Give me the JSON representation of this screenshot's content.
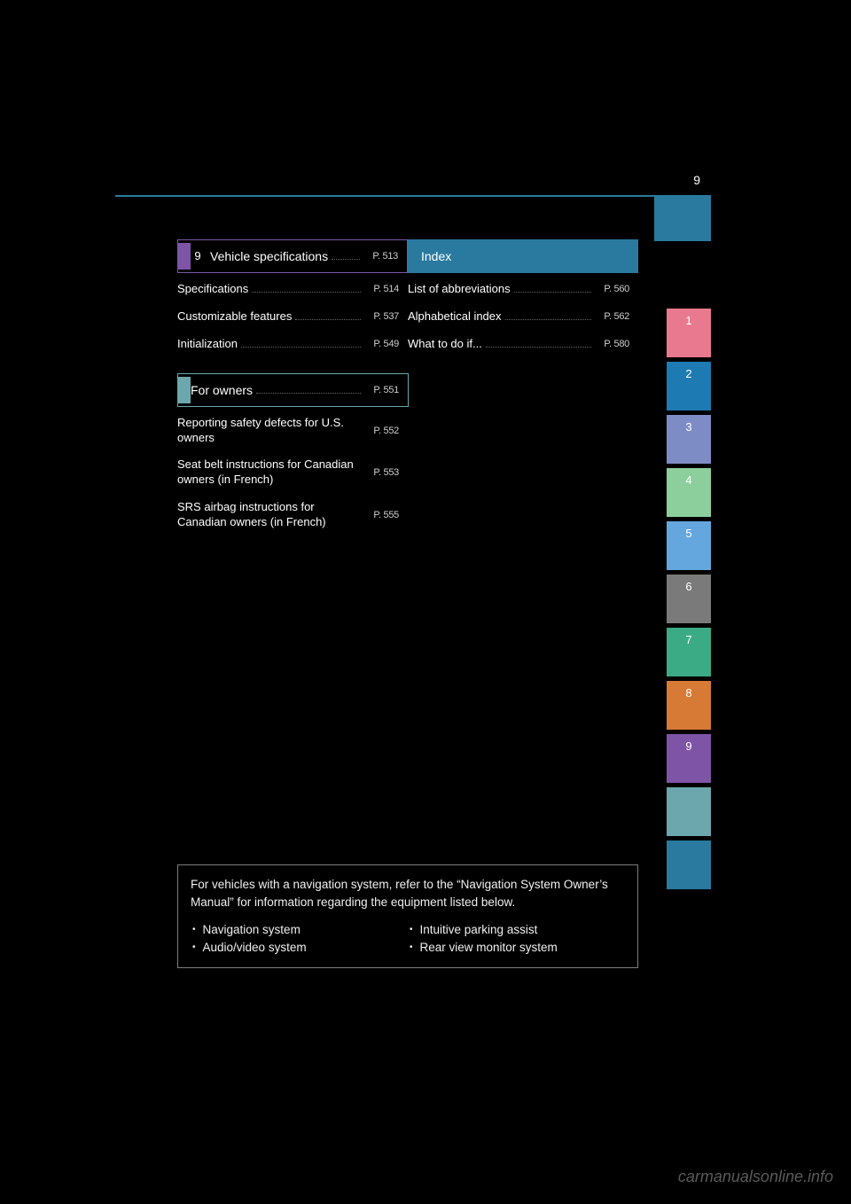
{
  "page_number": "9",
  "tabs": [
    {
      "n": "1",
      "color": "#e8798e"
    },
    {
      "n": "2",
      "color": "#1d7ab2"
    },
    {
      "n": "3",
      "color": "#7e8cc6"
    },
    {
      "n": "4",
      "color": "#8ccf9c"
    },
    {
      "n": "5",
      "color": "#64a7de"
    },
    {
      "n": "6",
      "color": "#7a7a7a"
    },
    {
      "n": "7",
      "color": "#3aab85"
    },
    {
      "n": "8",
      "color": "#d67a35"
    },
    {
      "n": "9",
      "color": "#7e55a6"
    },
    {
      "n": "",
      "color": "#6ba7ac"
    },
    {
      "n": "",
      "color": "#297a9e"
    }
  ],
  "toc": {
    "rows": [
      {
        "left": {
          "num": "9",
          "label": "Vehicle specifications",
          "page": "P. 513",
          "chip": "#7e55a6",
          "border": "#7e55a6"
        },
        "right": {
          "label": "Index",
          "page": "",
          "chip": "#297a9e",
          "fill": "#297a9e"
        }
      },
      {
        "left": {
          "label": "Specifications",
          "page": "P. 514"
        },
        "right": {
          "label": "List of abbreviations",
          "page": "P. 560"
        }
      },
      {
        "left": {
          "label": "Customizable features",
          "page": "P. 537"
        },
        "right": {
          "label": "Alphabetical index",
          "page": "P. 562"
        }
      },
      {
        "left": {
          "label": "Initialization",
          "page": "P. 549"
        },
        "right": {
          "label": "What to do if...",
          "page": "P. 580"
        }
      },
      {
        "left": {
          "label": "",
          "page": ""
        },
        "right": {
          "label": "",
          "page": ""
        }
      },
      {
        "left": {
          "label": "For owners",
          "page": "P. 551",
          "chip": "#6ba7ac",
          "border": "#6ba7ac"
        },
        "right": {
          "label": "",
          "page": ""
        }
      },
      {
        "left": {
          "label": "Reporting safety defects for U.S. owners",
          "page": "P. 552"
        },
        "right": {
          "label": "",
          "page": ""
        }
      },
      {
        "left": {
          "label": "Seat belt instructions for Canadian owners (in French)",
          "page": "P. 553"
        },
        "right": {
          "label": "",
          "page": ""
        }
      },
      {
        "left": {
          "label": "SRS airbag instructions for Canadian owners (in French)",
          "page": "P. 555"
        },
        "right": {
          "label": "",
          "page": ""
        }
      }
    ]
  },
  "note": {
    "text": "For vehicles with a navigation system, refer to the “Navigation System Owner’s Manual” for information regarding the equipment listed below.",
    "left_bullets": [
      "Navigation system",
      "Audio/video system"
    ],
    "right_bullets": [
      "Intuitive parking assist",
      "Rear view monitor system"
    ]
  },
  "watermark": "carmanualsonline.info"
}
